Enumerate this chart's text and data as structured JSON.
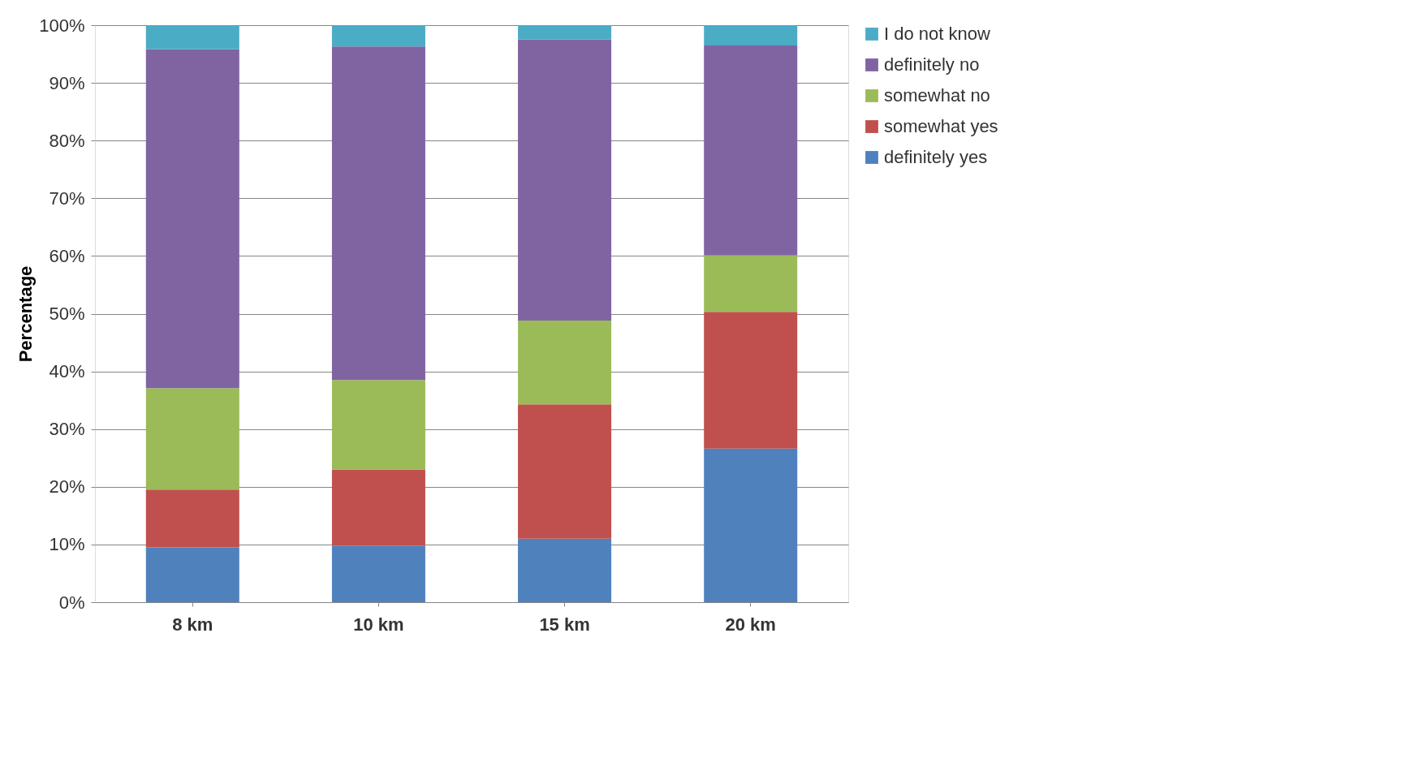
{
  "chart_data": {
    "type": "bar",
    "stacked": true,
    "ylabel": "Percentage",
    "categories": [
      "8 km",
      "10 km",
      "15 km",
      "20 km"
    ],
    "series": [
      {
        "name": "definitely yes",
        "color": "#4f81bd",
        "values": [
          9.5,
          9.8,
          11.0,
          26.6
        ]
      },
      {
        "name": "somewhat yes",
        "color": "#c0504d",
        "values": [
          10.0,
          13.2,
          23.3,
          23.7
        ]
      },
      {
        "name": "somewhat no",
        "color": "#9bbb59",
        "values": [
          17.6,
          15.5,
          14.5,
          9.8
        ]
      },
      {
        "name": "definitely no",
        "color": "#8064a2",
        "values": [
          58.7,
          57.8,
          48.7,
          36.4
        ]
      },
      {
        "name": "I do not know",
        "color": "#4bacc6",
        "values": [
          4.2,
          3.7,
          2.5,
          3.5
        ]
      }
    ],
    "ylim": [
      0,
      100
    ],
    "yticks": [
      {
        "value": 0,
        "label": "0%"
      },
      {
        "value": 10,
        "label": "10%"
      },
      {
        "value": 20,
        "label": "20%"
      },
      {
        "value": 30,
        "label": "30%"
      },
      {
        "value": 40,
        "label": "40%"
      },
      {
        "value": 50,
        "label": "50%"
      },
      {
        "value": 60,
        "label": "60%"
      },
      {
        "value": 70,
        "label": "70%"
      },
      {
        "value": 80,
        "label": "80%"
      },
      {
        "value": 90,
        "label": "90%"
      },
      {
        "value": 100,
        "label": "100%"
      }
    ],
    "grid": "y",
    "legend": "right"
  }
}
